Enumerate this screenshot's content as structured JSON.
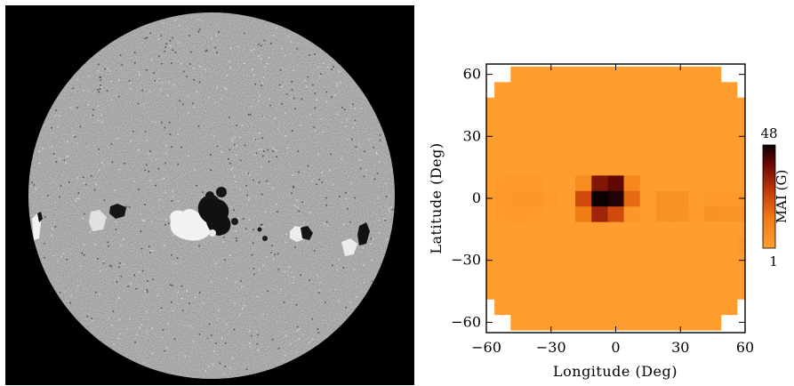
{
  "magnetogram": {
    "background_color": "#000000",
    "disk_color": "#8c8c8c",
    "positive_polarity_color": "#ffffff",
    "negative_polarity_color": "#000000"
  },
  "chart_data": {
    "type": "heatmap",
    "xlabel": "Longitude (Deg)",
    "ylabel": "Latitude (Deg)",
    "xlim": [
      -60,
      60
    ],
    "ylim": [
      -65,
      65
    ],
    "x_ticks": [
      -60,
      -30,
      0,
      30,
      60
    ],
    "y_ticks": [
      60,
      30,
      0,
      -30,
      -60
    ],
    "x_tick_labels": [
      "−60",
      "−30",
      "0",
      "30",
      "60"
    ],
    "y_tick_labels": [
      "60",
      "30",
      "0",
      "−30",
      "−60"
    ],
    "grid": false,
    "cell_size_deg": 7.5,
    "background_value": 1,
    "colorbar": {
      "label": "MAI (G)",
      "min": 1,
      "max": 48,
      "min_label": "1",
      "max_label": "48"
    },
    "cells": [
      {
        "lon": -52.5,
        "lat": 7.5,
        "value": 2
      },
      {
        "lon": -45,
        "lat": 7.5,
        "value": 3
      },
      {
        "lon": -37.5,
        "lat": 7.5,
        "value": 3
      },
      {
        "lon": -52.5,
        "lat": 0,
        "value": 3
      },
      {
        "lon": -45,
        "lat": 0,
        "value": 4
      },
      {
        "lon": -37.5,
        "lat": 0,
        "value": 4
      },
      {
        "lon": -30,
        "lat": 0,
        "value": 2
      },
      {
        "lon": -52.5,
        "lat": -7.5,
        "value": 2
      },
      {
        "lon": -45,
        "lat": -7.5,
        "value": 3
      },
      {
        "lon": -37.5,
        "lat": -7.5,
        "value": 2
      },
      {
        "lon": -15,
        "lat": 7.5,
        "value": 8
      },
      {
        "lon": -7.5,
        "lat": 7.5,
        "value": 36
      },
      {
        "lon": 0,
        "lat": 7.5,
        "value": 40
      },
      {
        "lon": 7.5,
        "lat": 7.5,
        "value": 10
      },
      {
        "lon": -15,
        "lat": 0,
        "value": 24
      },
      {
        "lon": -7.5,
        "lat": 0,
        "value": 48
      },
      {
        "lon": 0,
        "lat": 0,
        "value": 46
      },
      {
        "lon": 7.5,
        "lat": 0,
        "value": 18
      },
      {
        "lon": -15,
        "lat": -7.5,
        "value": 14
      },
      {
        "lon": -7.5,
        "lat": -7.5,
        "value": 32
      },
      {
        "lon": 0,
        "lat": -7.5,
        "value": 24
      },
      {
        "lon": 7.5,
        "lat": -7.5,
        "value": 4
      },
      {
        "lon": 22.5,
        "lat": 0,
        "value": 6
      },
      {
        "lon": 30,
        "lat": 0,
        "value": 6
      },
      {
        "lon": 22.5,
        "lat": -7.5,
        "value": 6
      },
      {
        "lon": 30,
        "lat": -7.5,
        "value": 6
      },
      {
        "lon": 45,
        "lat": 0,
        "value": 3
      },
      {
        "lon": 52.5,
        "lat": 0,
        "value": 3
      },
      {
        "lon": 60,
        "lat": 0,
        "value": 3
      },
      {
        "lon": 45,
        "lat": -7.5,
        "value": 6
      },
      {
        "lon": 52.5,
        "lat": -7.5,
        "value": 5
      },
      {
        "lon": 60,
        "lat": -7.5,
        "value": 5
      },
      {
        "lon": 37.5,
        "lat": -7.5,
        "value": 2
      },
      {
        "lon": 60,
        "lat": -22.5,
        "value": 3
      }
    ]
  }
}
